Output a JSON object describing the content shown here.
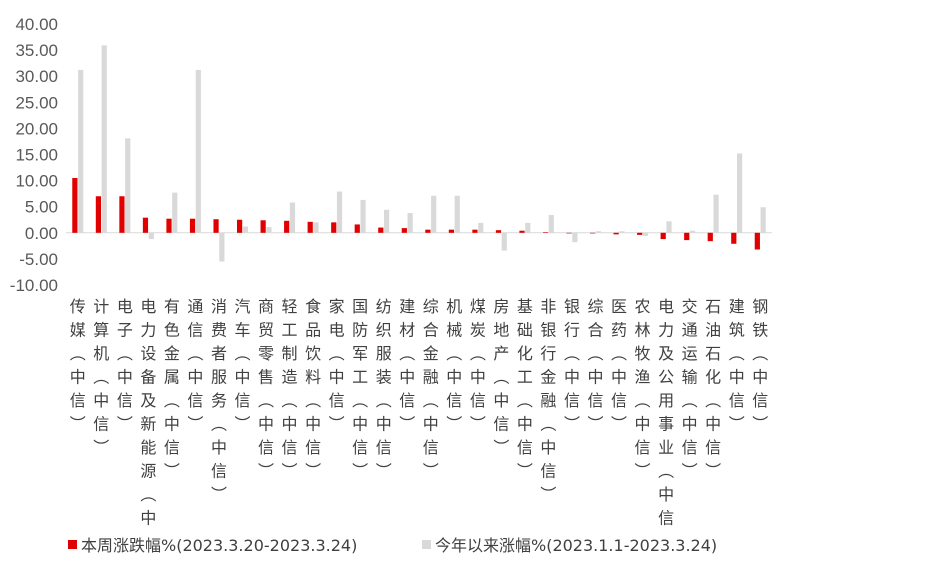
{
  "chart_data": {
    "type": "bar",
    "categories": [
      "传媒(中信)",
      "计算机(中信)",
      "电子(中信)",
      "电力设备及新能源(中信)",
      "有色金属(中信)",
      "通信(中信)",
      "消费者服务(中信)",
      "汽车(中信)",
      "商贸零售(中信)",
      "轻工制造(中信)",
      "食品饮料(中信)",
      "家电(中信)",
      "国防军工(中信)",
      "纺织服装(中信)",
      "建材(中信)",
      "综合金融(中信)",
      "机械(中信)",
      "煤炭(中信)",
      "房地产(中信)",
      "基础化工(中信)",
      "非银行金融(中信)",
      "银行(中信)",
      "综合(中信)",
      "医药(中信)",
      "农林牧渔(中信)",
      "电力及公用事业(中信)",
      "交通运输(中信)",
      "石油石化(中信)",
      "建筑(中信)",
      "钢铁(中信)"
    ],
    "series": [
      {
        "name": "本周涨跌幅%(2023.3.20-2023.3.24)",
        "color": "#e00000",
        "values": [
          10.5,
          7.0,
          7.0,
          2.9,
          2.7,
          2.7,
          2.6,
          2.5,
          2.4,
          2.3,
          2.1,
          2.0,
          1.6,
          1.0,
          0.9,
          0.6,
          0.6,
          0.6,
          0.5,
          0.4,
          0.1,
          0.0,
          -0.1,
          -0.3,
          -0.4,
          -1.2,
          -1.4,
          -1.6,
          -2.1,
          -3.2
        ]
      },
      {
        "name": "今年以来涨幅%(2023.1.1-2023.3.24)",
        "color": "#d9d9d9",
        "values": [
          31.2,
          35.9,
          18.1,
          -1.2,
          7.7,
          31.2,
          -5.5,
          1.2,
          1.1,
          5.8,
          2.0,
          7.9,
          6.3,
          4.4,
          3.8,
          7.1,
          7.1,
          1.9,
          -3.4,
          1.9,
          3.4,
          -1.8,
          0.3,
          0.3,
          -0.6,
          2.2,
          0.4,
          7.3,
          15.2,
          4.9
        ]
      }
    ],
    "yticks": [
      "40.00",
      "35.00",
      "30.00",
      "25.00",
      "20.00",
      "15.00",
      "10.00",
      "5.00",
      "0.00",
      "-5.00",
      "-10.00"
    ],
    "ylim": [
      -10,
      40
    ],
    "grid": false,
    "legend_position": "bottom",
    "title": "",
    "xlabel": "",
    "ylabel": ""
  }
}
